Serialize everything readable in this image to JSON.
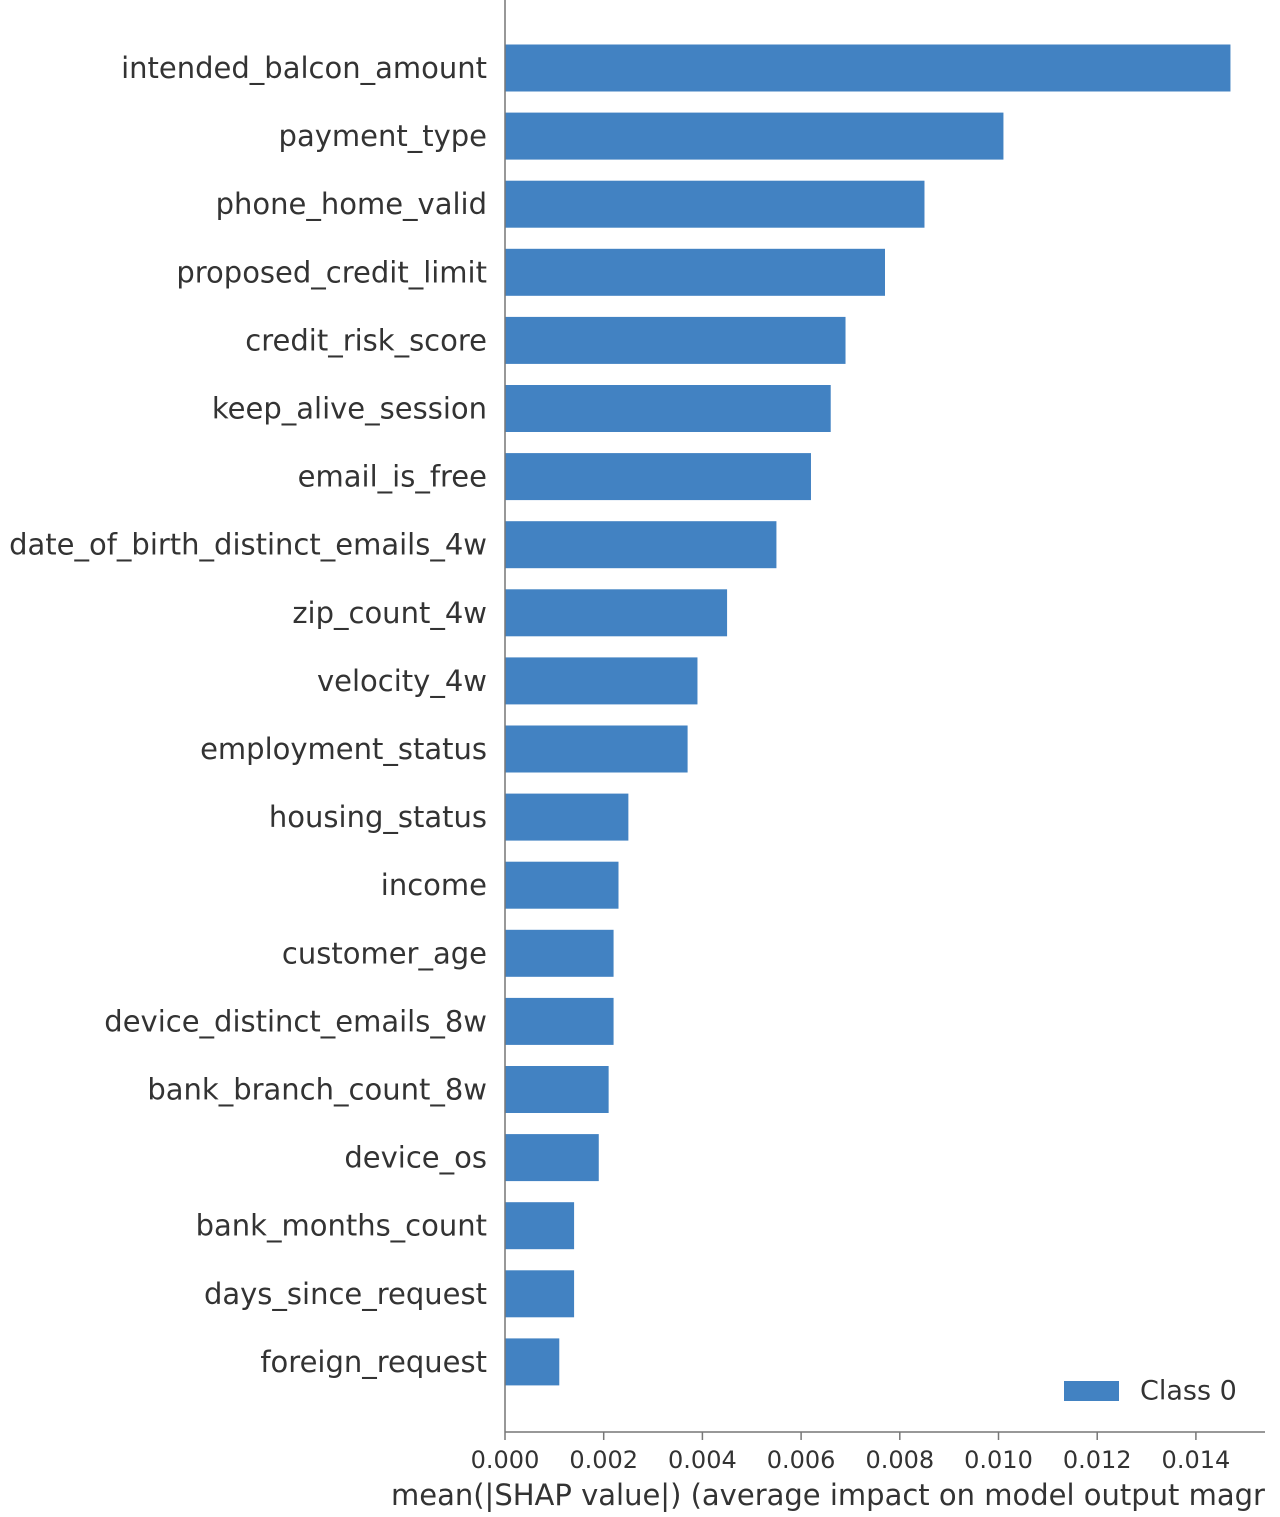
{
  "chart_data": {
    "type": "bar",
    "orientation": "horizontal",
    "categories": [
      "intended_balcon_amount",
      "payment_type",
      "phone_home_valid",
      "proposed_credit_limit",
      "credit_risk_score",
      "keep_alive_session",
      "email_is_free",
      "date_of_birth_distinct_emails_4w",
      "zip_count_4w",
      "velocity_4w",
      "employment_status",
      "housing_status",
      "income",
      "customer_age",
      "device_distinct_emails_8w",
      "bank_branch_count_8w",
      "device_os",
      "bank_months_count",
      "days_since_request",
      "foreign_request"
    ],
    "series": [
      {
        "name": "Class 0",
        "values": [
          0.0147,
          0.0101,
          0.0085,
          0.0077,
          0.0069,
          0.0066,
          0.0062,
          0.0055,
          0.0045,
          0.0039,
          0.0037,
          0.0025,
          0.0023,
          0.0022,
          0.0022,
          0.0021,
          0.0019,
          0.0014,
          0.0014,
          0.0011
        ]
      }
    ],
    "xlabel": "mean(|SHAP value|) (average impact on model output magr",
    "ylabel": "",
    "title": "",
    "xlim": [
      0,
      0.0154
    ],
    "xticks": [
      "0.000",
      "0.002",
      "0.004",
      "0.006",
      "0.008",
      "0.010",
      "0.012",
      "0.014"
    ],
    "legend": {
      "position": "bottom-right",
      "entries": [
        "Class 0"
      ]
    },
    "grid": false,
    "colors": {
      "bar": "#4282c2",
      "axis": "#777777",
      "text": "#333333"
    }
  }
}
